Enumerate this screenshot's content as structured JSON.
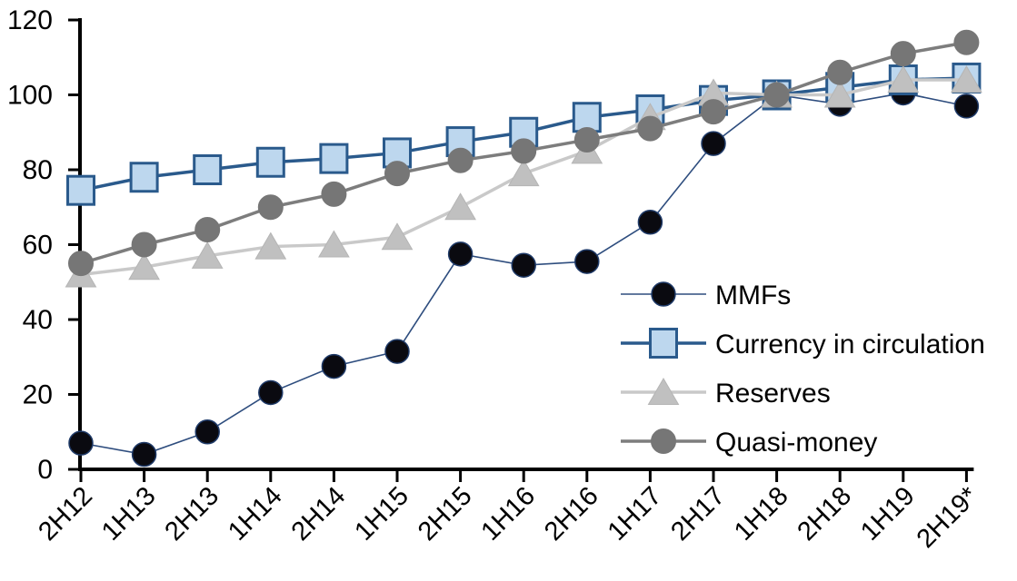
{
  "chart_data": {
    "type": "line",
    "title": "",
    "xlabel": "",
    "ylabel": "",
    "categories": [
      "2H12",
      "1H13",
      "2H13",
      "1H14",
      "2H14",
      "1H15",
      "2H15",
      "1H16",
      "2H16",
      "1H17",
      "2H17",
      "1H18",
      "2H18",
      "1H19",
      "2H19*"
    ],
    "series": [
      {
        "name": "MMFs",
        "marker": "circle-black",
        "values": [
          7,
          4,
          10,
          20.5,
          27.5,
          31.5,
          57.5,
          54.5,
          55.5,
          66,
          87,
          100,
          97.5,
          100.5,
          97
        ],
        "line_color": "#2e4d7e",
        "line_width": 1.6,
        "marker_fill": "#0a0a10",
        "marker_stroke": "#1f3a68"
      },
      {
        "name": "Currency in circulation",
        "marker": "square-blue",
        "values": [
          74.5,
          78,
          80,
          82,
          83,
          84.5,
          87.5,
          90,
          94,
          96,
          98.5,
          100,
          102,
          104,
          104.5
        ],
        "line_color": "#2a5a8c",
        "line_width": 3.5,
        "marker_fill": "#bdd7ee",
        "marker_stroke": "#2a5a8c"
      },
      {
        "name": "Reserves",
        "marker": "triangle-gray",
        "values": [
          52,
          54,
          57,
          59.5,
          60,
          62,
          70,
          79,
          85,
          94,
          100.5,
          100,
          100,
          104,
          104
        ],
        "line_color": "#c9c9c9",
        "line_width": 3.5,
        "marker_fill": "#c0c0c0",
        "marker_stroke": "#b5b5b5"
      },
      {
        "name": "Quasi-money",
        "marker": "circle-gray",
        "values": [
          55,
          60,
          64,
          70,
          73.5,
          79,
          82.5,
          85,
          88,
          91,
          95.5,
          100,
          106,
          111,
          114
        ],
        "line_color": "#7d7d7d",
        "line_width": 3.5,
        "marker_fill": "#767676",
        "marker_stroke": "#767676"
      }
    ],
    "y_axis": {
      "min": 0,
      "max": 120,
      "step": 20,
      "tick_labels": [
        "0",
        "20",
        "40",
        "60",
        "80",
        "100",
        "120"
      ]
    },
    "x_axis": {
      "label_rotation_deg": -45
    },
    "legend": {
      "position": "middle-right",
      "entries": [
        "MMFs",
        "Currency in circulation",
        "Reserves",
        "Quasi-money"
      ]
    },
    "grid": false,
    "axis_color": "#000000",
    "background_color": "#ffffff"
  }
}
